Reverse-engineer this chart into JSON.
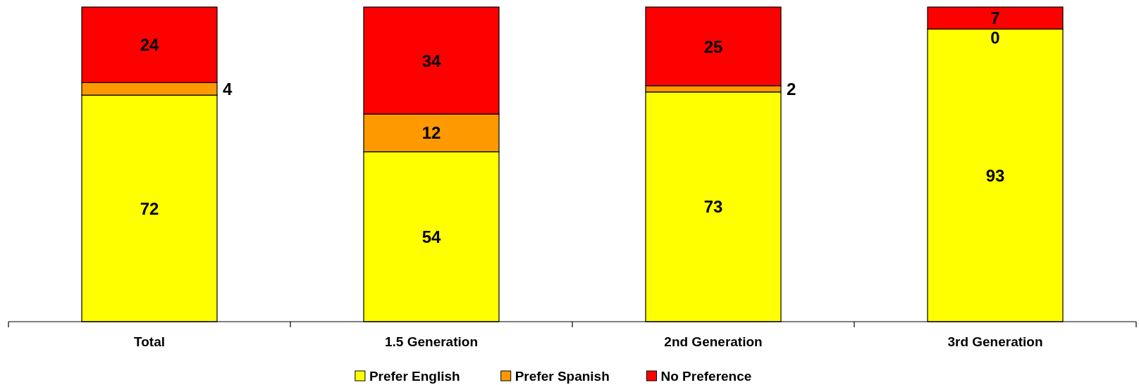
{
  "chart_data": {
    "type": "bar",
    "stacked": true,
    "data_labels": true,
    "legend": "bottom",
    "categories": [
      "Total",
      "1.5 Generation",
      "2nd Generation",
      "3rd Generation"
    ],
    "series": [
      {
        "name": "Prefer English",
        "color": "#ffff00",
        "values": [
          72,
          54,
          73,
          93
        ]
      },
      {
        "name": "Prefer Spanish",
        "color": "#ff9900",
        "values": [
          4,
          12,
          2,
          0
        ]
      },
      {
        "name": "No Preference",
        "color": "#ff0000",
        "values": [
          24,
          34,
          25,
          7
        ]
      }
    ]
  }
}
